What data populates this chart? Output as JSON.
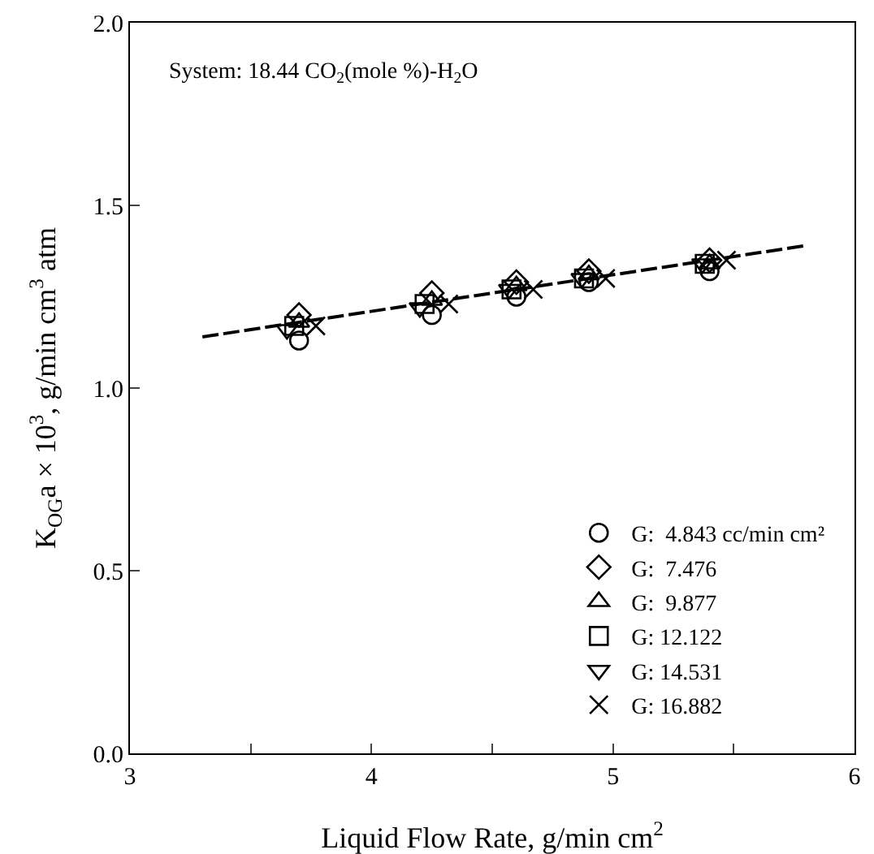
{
  "chart_data": {
    "type": "scatter",
    "xlabel": "Liquid Flow Rate, g/min cm$^{2}$",
    "ylabel": "K$_{OG}$a × 10$^{3}$, g/min cm$^{3}$ atm",
    "annotations": [
      "System: 18.44 CO$_{2}$(mole %)-H$_{2}$O"
    ],
    "xlim": [
      3,
      6
    ],
    "xticks": [
      3,
      {
        "value": 3.5,
        "label": null
      },
      4,
      {
        "value": 4.5,
        "label": null
      },
      5,
      {
        "value": 5.5,
        "label": null
      },
      6
    ],
    "ylim": [
      0,
      2
    ],
    "yticks": [
      {
        "value": 0,
        "label": "0.0"
      },
      0.5,
      {
        "value": 1,
        "label": "1.0"
      },
      1.5,
      {
        "value": 2,
        "label": "2.0"
      }
    ],
    "grid": false,
    "legend": "bottom right",
    "series": [
      {
        "name": "G:  4.843 cc/min cm²",
        "color": "#000000",
        "marker": "circle",
        "x": [
          3.7,
          4.25,
          4.6,
          4.9,
          5.4
        ],
        "values": [
          1.13,
          1.2,
          1.25,
          1.29,
          1.32
        ]
      },
      {
        "name": "G:  7.476",
        "color": "#000000",
        "marker": "diamond",
        "x": [
          3.7,
          4.25,
          4.6,
          4.9,
          5.4
        ],
        "values": [
          1.2,
          1.26,
          1.29,
          1.32,
          1.35
        ]
      },
      {
        "name": "G:  9.877",
        "color": "#000000",
        "marker": "triangle",
        "x": [
          3.7,
          4.25,
          4.6,
          4.9,
          5.4
        ],
        "values": [
          1.18,
          1.24,
          1.28,
          1.31,
          1.34
        ]
      },
      {
        "name": "G: 12.122",
        "color": "#000000",
        "marker": "square",
        "x": [
          3.68,
          4.22,
          4.58,
          4.88,
          5.38
        ],
        "values": [
          1.17,
          1.23,
          1.27,
          1.3,
          1.34
        ]
      },
      {
        "name": "G: 14.531",
        "color": "#000000",
        "marker": "triangle-down",
        "x": [
          3.65,
          4.2,
          4.57,
          4.87,
          5.37
        ],
        "values": [
          1.16,
          1.22,
          1.27,
          1.3,
          1.34
        ]
      },
      {
        "name": "G: 16.882",
        "color": "#000000",
        "marker": "cross",
        "x": [
          3.77,
          4.32,
          4.67,
          4.97,
          5.47
        ],
        "values": [
          1.17,
          1.23,
          1.27,
          1.3,
          1.35
        ]
      },
      {
        "type": "line",
        "color": "#000000",
        "line_style": "dashed",
        "marker": "none",
        "x": [
          3.3,
          5.8
        ],
        "values": [
          1.14,
          1.39
        ]
      }
    ]
  }
}
